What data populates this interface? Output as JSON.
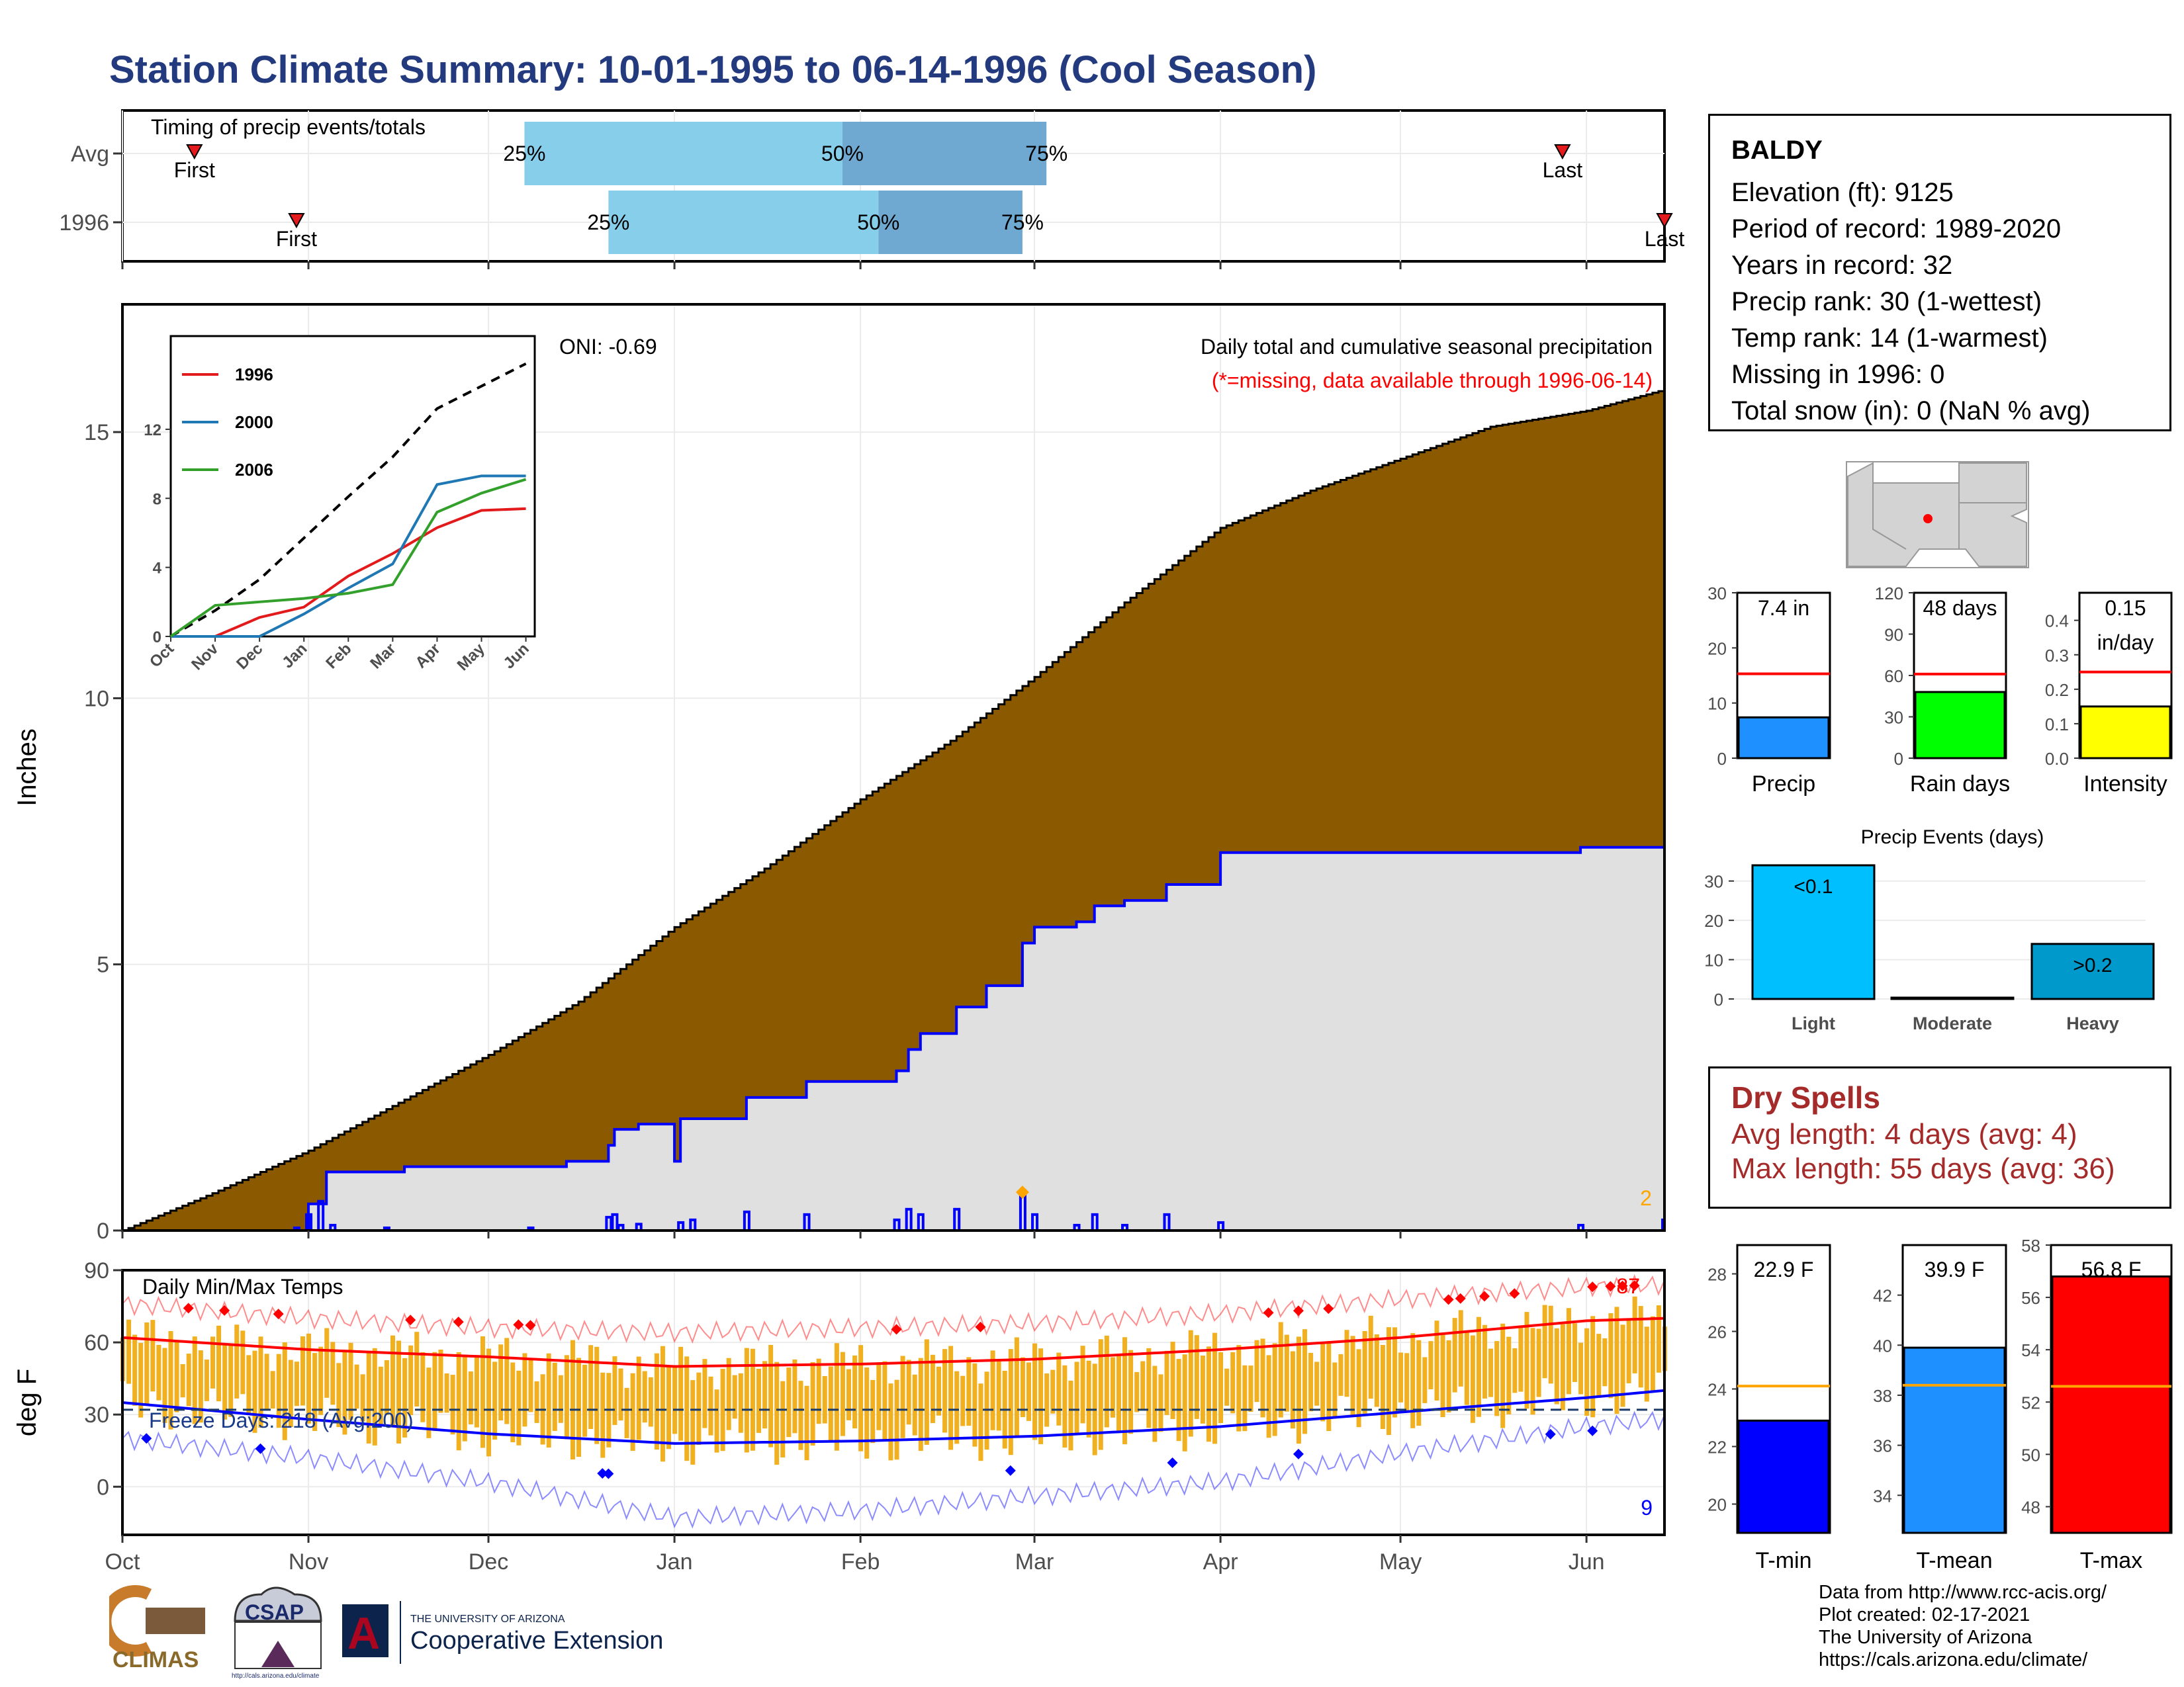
{
  "page": {
    "title": "Station Climate Summary: 10-01-1995 to 06-14-1996 (Cool Season)",
    "credits": [
      "Data from http://www.rcc-acis.org/",
      "Plot created: 02-17-2021",
      "The University of Arizona",
      "https://cals.arizona.edu/climate/"
    ],
    "logos": {
      "climas": "CLIMAS",
      "csap": "CSAP",
      "csap_url": "http://cals.arizona.edu/climate",
      "ua_small": "THE UNIVERSITY OF ARIZONA",
      "ua_big": "Cooperative Extension",
      "ua_letter": "A"
    }
  },
  "station": {
    "name": "BALDY",
    "lines": [
      "Elevation (ft): 9125",
      "Period of record: 1989-2020",
      "Years in record: 32",
      "Precip rank: 30 (1-wettest)",
      "Temp rank: 14 (1-warmest)",
      "Missing in 1996: 0",
      "Total snow (in): 0 (NaN % avg)"
    ]
  },
  "dry_spells": {
    "title": "Dry Spells",
    "lines": [
      "Avg length: 4 days (avg: 4)",
      "Max length: 55 days (avg: 36)"
    ]
  },
  "colors": {
    "title": "#233a7e",
    "cumulative_fill": "#8b5a00",
    "current_fill": "#e0e0e0",
    "current_line": "#0000ff",
    "quartile_light": "#87ceeb",
    "quartile_dark": "#6fa8d0",
    "temp_bar": "#f0b020",
    "tmax": "#ff0000",
    "tmin": "#0000ff",
    "precip_bar": "#1e90ff",
    "rain_days_bar": "#00ff00",
    "intensity_bar": "#ffff00",
    "avg_line": "#ff0000",
    "light": "#00bfff",
    "heavy": "#0099cc",
    "dry": "#a52a2a",
    "tmean_bar": "#1e90ff",
    "temp_avg_line": "#ffa500"
  },
  "chart_data": [
    {
      "id": "timing",
      "type": "bar",
      "title": "Timing of precip events/totals",
      "rows": [
        {
          "label": "Avg",
          "first": "1995-10-13",
          "q25": "1995-12-07",
          "q50": "1996-01-29",
          "q75": "1996-03-03",
          "last": "1996-05-28",
          "first_label": "First",
          "last_label": "Last",
          "q25_label": "25%",
          "q50_label": "50%",
          "q75_label": "75%"
        },
        {
          "label": "1996",
          "first": "1995-10-30",
          "q25": "1995-12-21",
          "q50": "1996-02-04",
          "q75": "1996-02-28",
          "last": "1996-06-14",
          "first_label": "First",
          "last_label": "Last",
          "q25_label": "25%",
          "q50_label": "50%",
          "q75_label": "75%"
        }
      ]
    },
    {
      "id": "precip",
      "type": "area",
      "title": "Daily total and cumulative seasonal precipitation",
      "subtitle": "(*=missing, data available through 1996-06-14)",
      "annotation": "ONI: -0.69",
      "ylabel": "Inches",
      "ylim": [
        0,
        17.4
      ],
      "yticks": [
        0,
        5,
        10,
        15
      ],
      "xlim": [
        "1995-10-01",
        "1996-06-14"
      ],
      "xticks": [
        [
          "1995-10-01",
          "Oct"
        ],
        [
          "1995-11-01",
          "Nov"
        ],
        [
          "1995-12-01",
          "Dec"
        ],
        [
          "1996-01-01",
          "Jan"
        ],
        [
          "1996-02-01",
          "Feb"
        ],
        [
          "1996-03-01",
          "Mar"
        ],
        [
          "1996-04-01",
          "Apr"
        ],
        [
          "1996-05-01",
          "May"
        ],
        [
          "1996-06-01",
          "Jun"
        ]
      ],
      "average_cumulative": [
        [
          "1995-10-01",
          0
        ],
        [
          "1995-10-16",
          0.7
        ],
        [
          "1995-11-01",
          1.5
        ],
        [
          "1995-11-16",
          2.4
        ],
        [
          "1995-12-01",
          3.3
        ],
        [
          "1995-12-16",
          4.3
        ],
        [
          "1996-01-01",
          5.7
        ],
        [
          "1996-01-16",
          6.8
        ],
        [
          "1996-02-01",
          8.1
        ],
        [
          "1996-02-16",
          9.2
        ],
        [
          "1996-03-01",
          10.4
        ],
        [
          "1996-03-16",
          11.8
        ],
        [
          "1996-04-01",
          13.2
        ],
        [
          "1996-04-16",
          13.9
        ],
        [
          "1996-05-01",
          14.5
        ],
        [
          "1996-05-16",
          15.1
        ],
        [
          "1996-06-01",
          15.4
        ],
        [
          "1996-06-14",
          15.8
        ]
      ],
      "current_cumulative": [
        [
          "1995-10-01",
          0
        ],
        [
          "1995-10-29",
          0
        ],
        [
          "1995-11-01",
          0.5
        ],
        [
          "1995-11-04",
          1.1
        ],
        [
          "1995-11-16",
          1.1
        ],
        [
          "1995-11-17",
          1.2
        ],
        [
          "1995-12-13",
          1.2
        ],
        [
          "1995-12-14",
          1.3
        ],
        [
          "1996-01-01",
          1.3
        ],
        [
          "1996-01-02",
          1.3
        ],
        [
          "1995-12-21",
          1.6
        ],
        [
          "1995-12-22",
          1.9
        ],
        [
          "1995-12-26",
          2.0
        ],
        [
          "1996-01-02",
          2.1
        ],
        [
          "1996-01-13",
          2.5
        ],
        [
          "1996-01-23",
          2.8
        ],
        [
          "1996-02-07",
          3.0
        ],
        [
          "1996-02-09",
          3.4
        ],
        [
          "1996-02-11",
          3.7
        ],
        [
          "1996-02-17",
          4.2
        ],
        [
          "1996-02-22",
          4.6
        ],
        [
          "1996-02-28",
          5.4
        ],
        [
          "1996-03-01",
          5.7
        ],
        [
          "1996-03-08",
          5.8
        ],
        [
          "1996-03-11",
          6.1
        ],
        [
          "1996-03-16",
          6.2
        ],
        [
          "1996-03-23",
          6.5
        ],
        [
          "1996-04-01",
          7.1
        ],
        [
          "1996-05-31",
          7.2
        ],
        [
          "1996-06-14",
          7.4
        ]
      ],
      "daily_bars": [
        [
          "1995-10-30",
          0.05
        ],
        [
          "1995-11-01",
          0.3
        ],
        [
          "1995-11-03",
          0.55
        ],
        [
          "1995-11-05",
          0.1
        ],
        [
          "1995-11-14",
          0.05
        ],
        [
          "1995-12-08",
          0.05
        ],
        [
          "1995-12-21",
          0.25
        ],
        [
          "1995-12-22",
          0.3
        ],
        [
          "1995-12-23",
          0.1
        ],
        [
          "1995-12-26",
          0.12
        ],
        [
          "1996-01-02",
          0.15
        ],
        [
          "1996-01-04",
          0.2
        ],
        [
          "1996-01-13",
          0.35
        ],
        [
          "1996-01-23",
          0.3
        ],
        [
          "1996-02-07",
          0.2
        ],
        [
          "1996-02-09",
          0.4
        ],
        [
          "1996-02-11",
          0.3
        ],
        [
          "1996-02-17",
          0.4
        ],
        [
          "1996-02-28",
          0.75
        ],
        [
          "1996-03-01",
          0.3
        ],
        [
          "1996-03-08",
          0.1
        ],
        [
          "1996-03-11",
          0.3
        ],
        [
          "1996-03-16",
          0.1
        ],
        [
          "1996-03-23",
          0.3
        ],
        [
          "1996-04-01",
          0.15
        ],
        [
          "1996-05-31",
          0.1
        ],
        [
          "1996-06-14",
          0.2
        ]
      ],
      "markers": [
        {
          "date": "1996-02-28",
          "value": 0.72
        }
      ],
      "corner_label": "2"
    },
    {
      "id": "inset",
      "type": "line",
      "ylim": [
        0,
        17.4
      ],
      "yticks": [
        0,
        4,
        8,
        12
      ],
      "xticks": [
        "Oct",
        "Nov",
        "Dec",
        "Jan",
        "Feb",
        "Mar",
        "Apr",
        "May",
        "Jun"
      ],
      "series": [
        {
          "name": "1996",
          "color": "#e31a1c",
          "values": [
            0,
            0,
            1.1,
            1.7,
            3.5,
            4.8,
            6.3,
            7.3,
            7.4
          ]
        },
        {
          "name": "2000",
          "color": "#1f78b4",
          "values": [
            0,
            0,
            0,
            1.3,
            2.8,
            4.2,
            8.8,
            9.3,
            9.3
          ]
        },
        {
          "name": "2006",
          "color": "#33a02c",
          "values": [
            0,
            1.8,
            2.0,
            2.2,
            2.5,
            3.0,
            7.2,
            8.3,
            9.1
          ]
        }
      ],
      "average": [
        0,
        1.5,
        3.3,
        5.7,
        8.1,
        10.4,
        13.2,
        14.5,
        15.8
      ]
    },
    {
      "id": "temps",
      "type": "line",
      "title": "Daily Min/Max Temps",
      "ylabel": "deg F",
      "ylim": [
        -20,
        90
      ],
      "yticks": [
        0,
        30,
        60,
        90
      ],
      "freeze_label": "Freeze Days: 218 (Avg:200)",
      "freeze_line": 32,
      "corner_high": "87",
      "corner_low": "9",
      "avg_tmax": [
        [
          "1995-10-01",
          62
        ],
        [
          "1995-11-01",
          57
        ],
        [
          "1995-12-01",
          54
        ],
        [
          "1996-01-01",
          50
        ],
        [
          "1996-02-01",
          51
        ],
        [
          "1996-03-01",
          53
        ],
        [
          "1996-04-01",
          57
        ],
        [
          "1996-05-01",
          62
        ],
        [
          "1996-06-01",
          69
        ],
        [
          "1996-06-14",
          70
        ]
      ],
      "avg_tmin": [
        [
          "1995-10-01",
          35
        ],
        [
          "1995-11-01",
          28
        ],
        [
          "1995-12-01",
          22
        ],
        [
          "1996-01-01",
          18
        ],
        [
          "1996-02-01",
          19
        ],
        [
          "1996-03-01",
          21
        ],
        [
          "1996-04-01",
          25
        ],
        [
          "1996-05-01",
          31
        ],
        [
          "1996-06-01",
          37
        ],
        [
          "1996-06-14",
          40
        ]
      ],
      "record_high": [
        [
          "1995-10-01",
          76
        ],
        [
          "1995-11-01",
          70
        ],
        [
          "1995-12-01",
          66
        ],
        [
          "1996-01-01",
          64
        ],
        [
          "1996-02-01",
          66
        ],
        [
          "1996-03-01",
          68
        ],
        [
          "1996-04-01",
          72
        ],
        [
          "1996-05-01",
          78
        ],
        [
          "1996-06-01",
          83
        ],
        [
          "1996-06-14",
          84
        ]
      ],
      "record_low": [
        [
          "1995-10-01",
          20
        ],
        [
          "1995-11-01",
          12
        ],
        [
          "1995-12-01",
          2
        ],
        [
          "1996-01-01",
          -13
        ],
        [
          "1996-02-01",
          -10
        ],
        [
          "1996-03-01",
          -4
        ],
        [
          "1996-04-01",
          2
        ],
        [
          "1996-05-01",
          14
        ],
        [
          "1996-06-01",
          25
        ],
        [
          "1996-06-14",
          28
        ]
      ],
      "record_high_days": [
        "1995-10-12",
        "1995-10-18",
        "1995-10-27",
        "1995-11-18",
        "1995-11-26",
        "1995-12-06",
        "1995-12-08",
        "1996-02-07",
        "1996-02-21",
        "1996-04-09",
        "1996-04-14",
        "1996-04-19",
        "1996-05-09",
        "1996-05-11",
        "1996-05-15",
        "1996-05-20",
        "1996-06-02",
        "1996-06-05",
        "1996-06-07",
        "1996-06-09"
      ],
      "record_low_days": [
        "1995-10-05",
        "1995-10-24",
        "1995-12-20",
        "1995-12-21",
        "1996-02-26",
        "1996-03-24",
        "1996-04-14",
        "1996-05-26",
        "1996-06-02"
      ]
    },
    {
      "id": "season_totals",
      "type": "bar",
      "charts": [
        {
          "label": "Precip",
          "value": 7.4,
          "avg": 15.3,
          "value_label": "7.4 in",
          "ylim": [
            0,
            30
          ],
          "yticks": [
            0,
            10,
            20,
            30
          ],
          "color": "#1e90ff"
        },
        {
          "label": "Rain days",
          "value": 48,
          "avg": 61,
          "value_label": "48 days",
          "ylim": [
            0,
            120
          ],
          "yticks": [
            0,
            30,
            60,
            90,
            120
          ],
          "color": "#00ff00"
        },
        {
          "label": "Intensity",
          "value": 0.15,
          "avg": 0.25,
          "value_label": "0.15 in/day",
          "ylim": [
            0,
            0.48
          ],
          "yticks": [
            0.0,
            0.1,
            0.2,
            0.3,
            0.4
          ],
          "color": "#ffff00"
        }
      ]
    },
    {
      "id": "precip_events",
      "type": "bar",
      "title": "Precip Events (days)",
      "categories": [
        "Light",
        "Moderate",
        "Heavy"
      ],
      "values": [
        34,
        0,
        14
      ],
      "value_labels": [
        "<0.1",
        "",
        ">0.2"
      ],
      "ylim": [
        0,
        35
      ],
      "yticks": [
        0,
        10,
        20,
        30
      ]
    },
    {
      "id": "temp_means",
      "type": "bar",
      "charts": [
        {
          "label": "T-min",
          "value": 22.9,
          "avg": 24.1,
          "value_label": "22.9 F",
          "ylim": [
            19,
            29
          ],
          "yticks": [
            20,
            22,
            24,
            26,
            28
          ],
          "color": "#0000ff"
        },
        {
          "label": "T-mean",
          "value": 39.9,
          "avg": 38.4,
          "value_label": "39.9 F",
          "ylim": [
            32.5,
            44
          ],
          "yticks": [
            34,
            36,
            38,
            40,
            42
          ],
          "color": "#1e90ff"
        },
        {
          "label": "T-max",
          "value": 56.8,
          "avg": 52.6,
          "value_label": "56.8 F",
          "ylim": [
            47,
            58
          ],
          "yticks": [
            48,
            50,
            52,
            54,
            56,
            58
          ],
          "color": "#ff0000"
        }
      ]
    }
  ]
}
